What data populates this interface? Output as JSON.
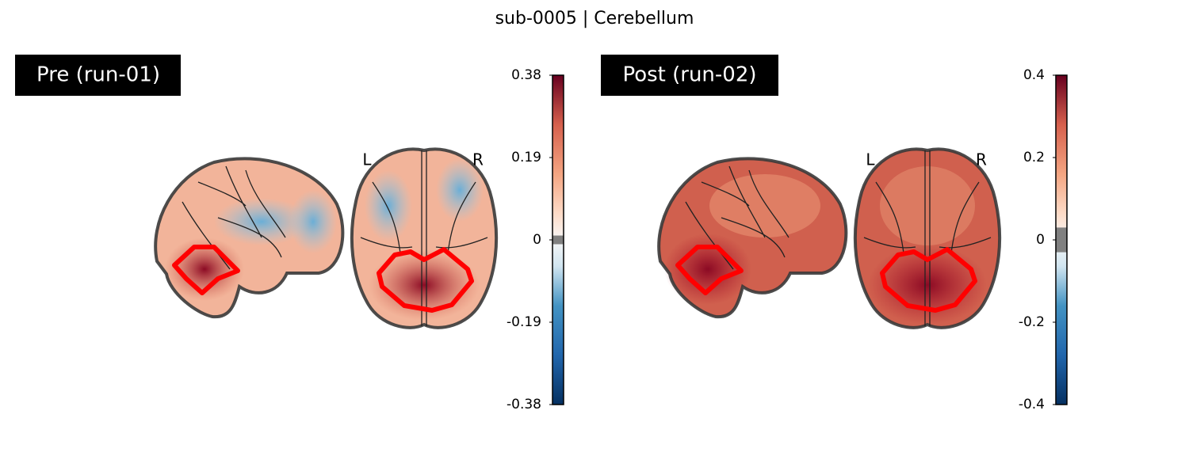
{
  "title": "sub-0005 | Cerebellum",
  "panels": [
    {
      "label": "Pre (run-01)",
      "orientation_labels": [
        "L",
        "R"
      ],
      "colorbar": {
        "lim": [
          -0.38,
          0.38
        ],
        "ticks": [
          -0.38,
          -0.19,
          0,
          0.19,
          0.38
        ],
        "threshold": [
          -0.01,
          0.01
        ]
      }
    },
    {
      "label": "Post (run-02)",
      "orientation_labels": [
        "L",
        "R"
      ],
      "colorbar": {
        "lim": [
          -0.4,
          0.4
        ],
        "ticks": [
          -0.4,
          -0.2,
          0,
          0.2,
          0.4
        ],
        "threshold": [
          -0.03,
          0.03
        ]
      }
    }
  ]
}
